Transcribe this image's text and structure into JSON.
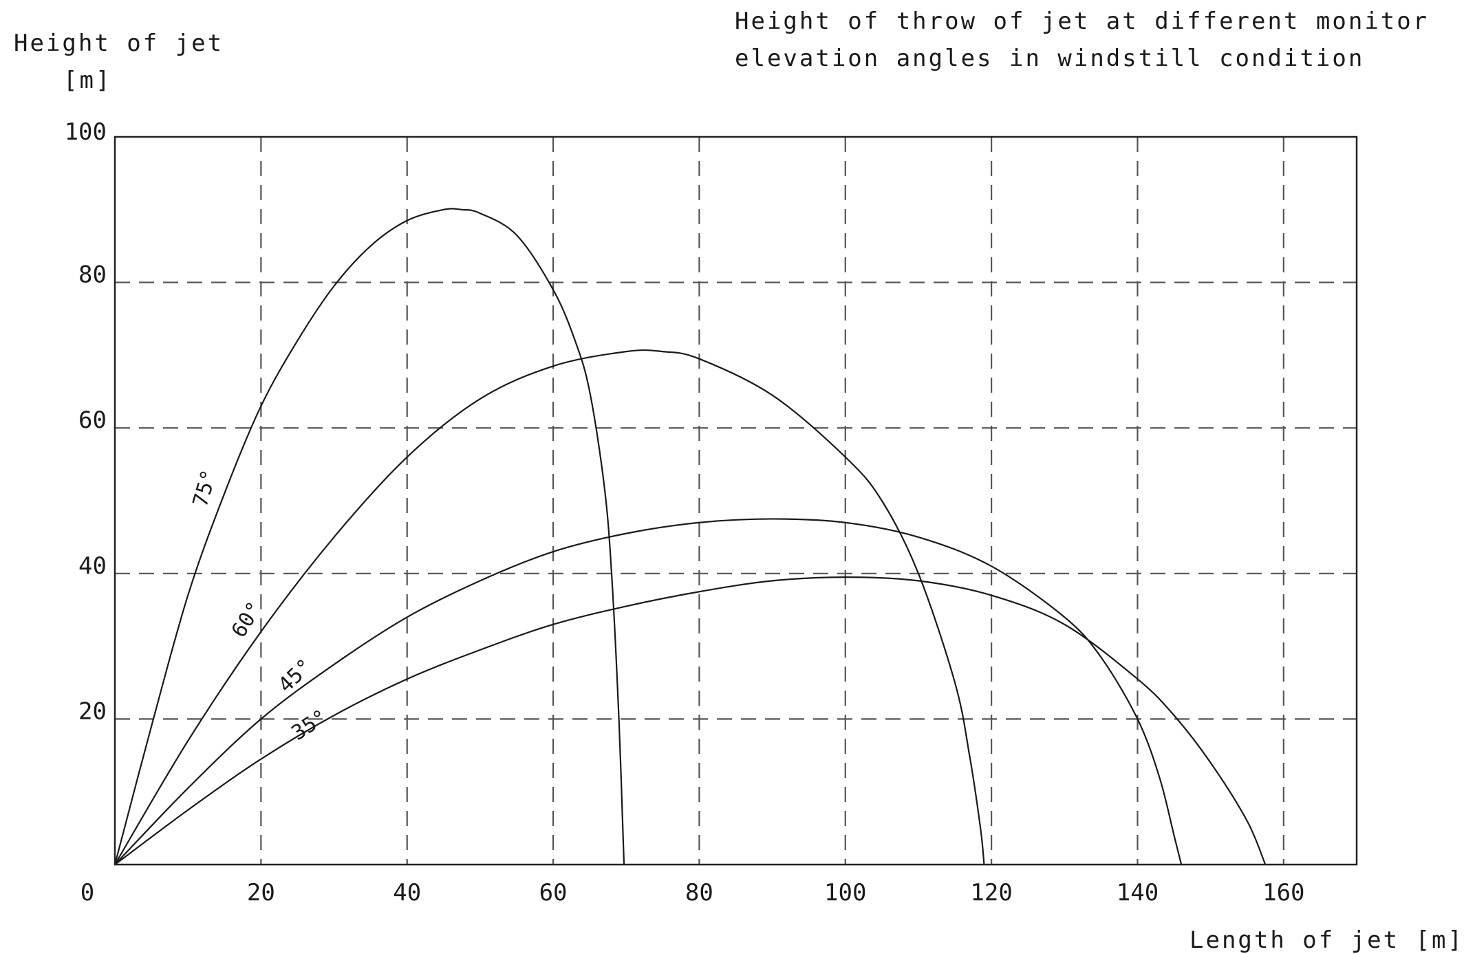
{
  "chart_data": {
    "type": "line",
    "title_lines": [
      "Height of throw of jet at different monitor",
      "elevation angles in windstill condition"
    ],
    "ylabel_lines": [
      "Height of jet",
      "[m]"
    ],
    "xlabel": "Length of jet [m]",
    "xlim": [
      0,
      170
    ],
    "ylim": [
      0,
      100
    ],
    "x_ticks": [
      0,
      20,
      40,
      60,
      80,
      100,
      120,
      140,
      160
    ],
    "y_ticks": [
      20,
      40,
      60,
      80,
      100
    ],
    "x_tick_labels": [
      "0",
      "20",
      "40",
      "60",
      "80",
      "100",
      "120",
      "140",
      "160"
    ],
    "y_tick_labels": [
      "20",
      "40",
      "60",
      "80",
      "100"
    ],
    "grid": true,
    "series": [
      {
        "name": "75°",
        "x": [
          0,
          5,
          10,
          15,
          20,
          25,
          30,
          35,
          40,
          45,
          47.5,
          50,
          55,
          60,
          63,
          65,
          67,
          68,
          69,
          69.7
        ],
        "y": [
          0,
          19,
          37,
          51,
          63,
          72,
          79.5,
          85,
          88.5,
          90,
          90,
          89.5,
          86.5,
          79,
          72,
          65,
          52,
          40,
          20,
          0
        ]
      },
      {
        "name": "60°",
        "x": [
          0,
          10,
          20,
          30,
          40,
          50,
          60,
          70,
          75,
          80,
          90,
          100,
          105,
          110,
          115,
          117,
          118.5,
          119
        ],
        "y": [
          0,
          17,
          32,
          45,
          56,
          64,
          68.5,
          70.5,
          70.5,
          69.5,
          64.5,
          56,
          50,
          40,
          25,
          15,
          5,
          0
        ]
      },
      {
        "name": "45°",
        "x": [
          0,
          10,
          20,
          30,
          40,
          50,
          60,
          70,
          80,
          90,
          100,
          110,
          120,
          130,
          135,
          140,
          143,
          145,
          146
        ],
        "y": [
          0,
          10.5,
          20,
          27.5,
          34,
          39,
          43,
          45.5,
          47,
          47.5,
          47,
          45,
          41,
          34,
          28.5,
          20,
          12,
          4,
          0
        ]
      },
      {
        "name": "35°",
        "x": [
          0,
          10,
          20,
          30,
          40,
          50,
          60,
          70,
          80,
          90,
          100,
          110,
          120,
          130,
          140,
          145,
          150,
          155,
          157.5
        ],
        "y": [
          0,
          7.5,
          14.5,
          20.5,
          25.5,
          29.5,
          33,
          35.5,
          37.5,
          39,
          39.5,
          39,
          37,
          33,
          25.5,
          20.5,
          14,
          6,
          0
        ]
      }
    ]
  }
}
